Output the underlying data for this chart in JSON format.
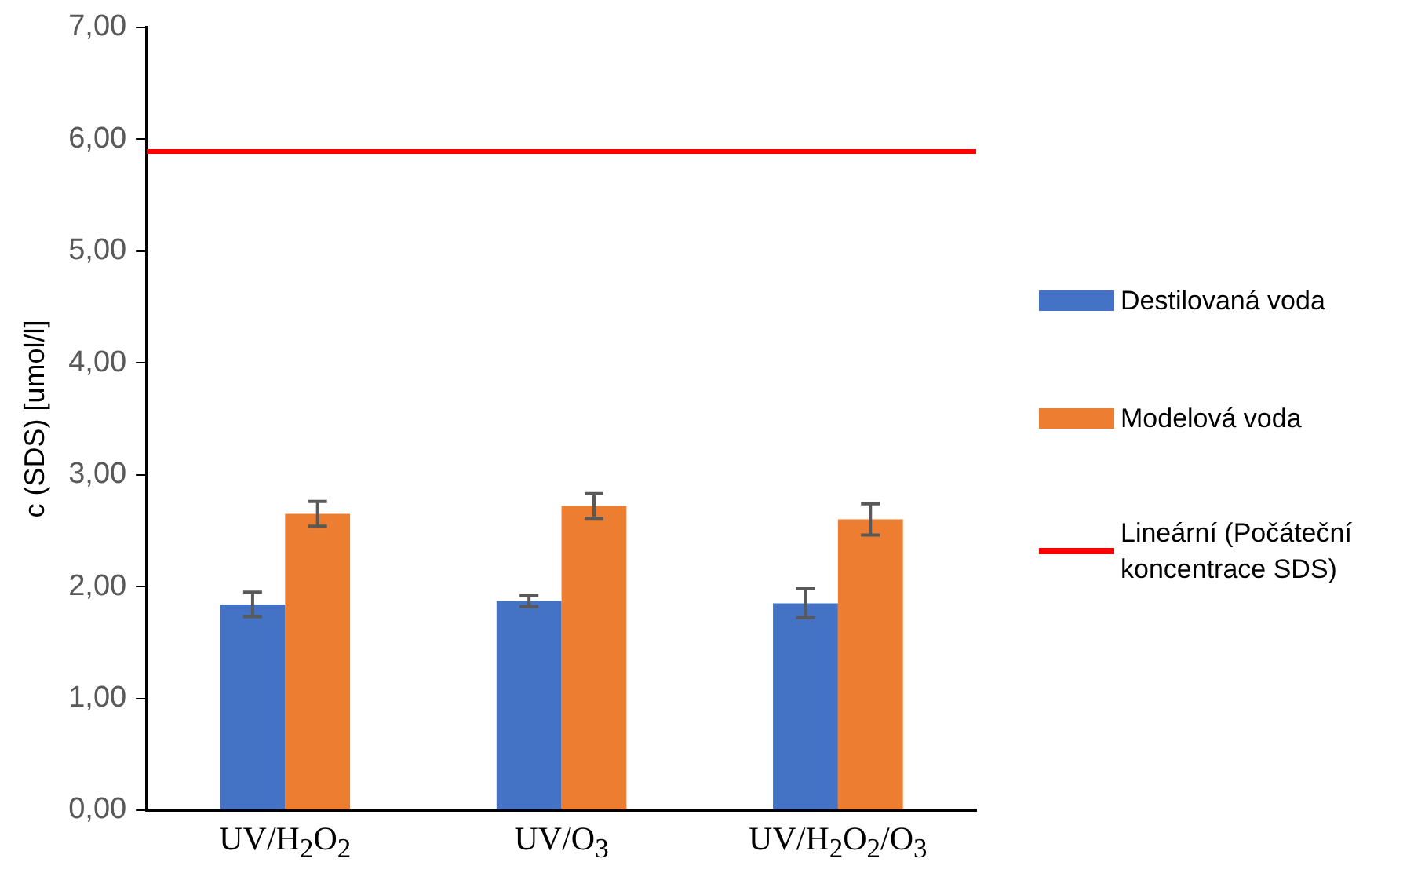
{
  "chart_data": {
    "type": "bar",
    "ylabel": "c (SDS) [umol/l]",
    "categories": [
      "UV/H$_{2}$O$_{2}$",
      "UV/O$_{3}$",
      "UV/H$_{2}$O$_{2}$/O$_{3}$"
    ],
    "series": [
      {
        "name": "Destilovaná voda",
        "color": "#4472c4",
        "values": [
          1.84,
          1.87,
          1.85
        ],
        "errors": [
          0.11,
          0.05,
          0.13
        ]
      },
      {
        "name": "Modelová voda",
        "color": "#ed7d31",
        "values": [
          2.65,
          2.72,
          2.6
        ],
        "errors": [
          0.11,
          0.11,
          0.14
        ]
      }
    ],
    "ref_lines": [
      {
        "axis": "y",
        "value": 5.89,
        "label": "Lineární (Počáteční koncentrace SDS)",
        "color": "#ff0000"
      }
    ],
    "ylim": [
      0,
      7
    ],
    "yticks": [
      {
        "value": 0,
        "label": "0,00"
      },
      {
        "value": 1,
        "label": "1,00"
      },
      {
        "value": 2,
        "label": "2,00"
      },
      {
        "value": 3,
        "label": "3,00"
      },
      {
        "value": 4,
        "label": "4,00"
      },
      {
        "value": 5,
        "label": "5,00"
      },
      {
        "value": 6,
        "label": "6,00"
      },
      {
        "value": 7,
        "label": "7,00"
      }
    ],
    "grid": false,
    "legend": "right"
  }
}
